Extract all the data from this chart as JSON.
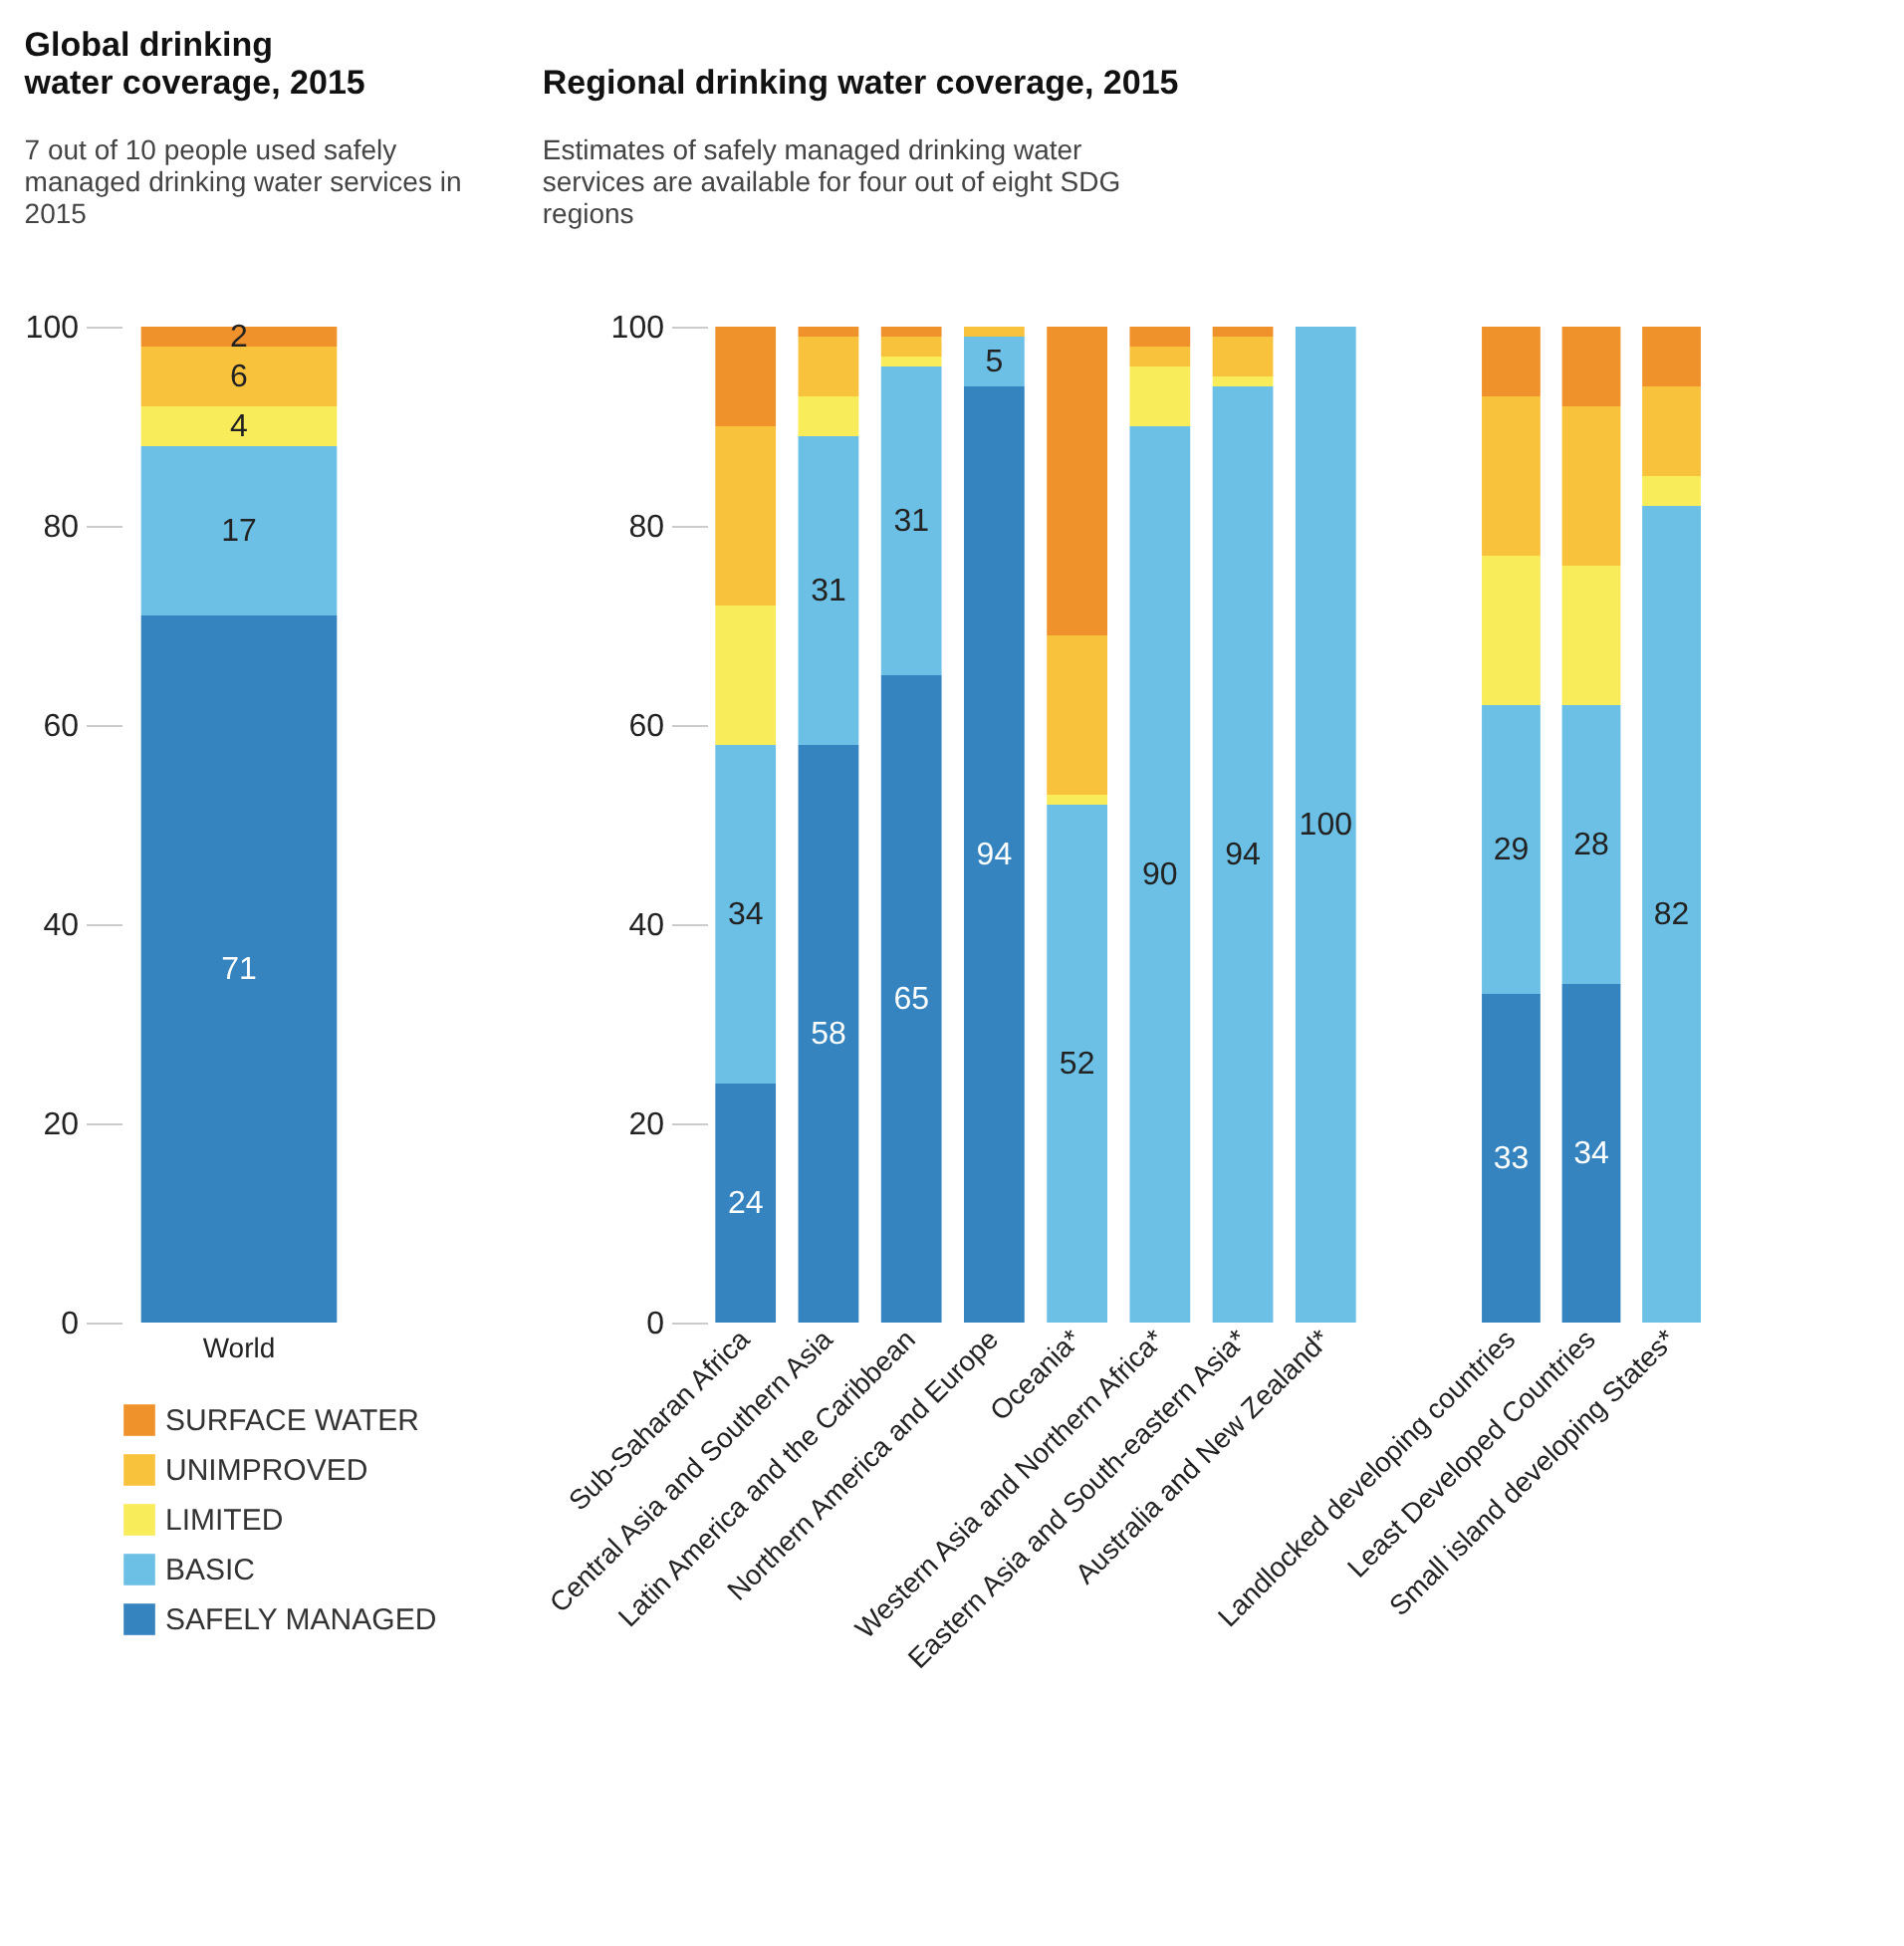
{
  "chart_data": [
    {
      "type": "bar",
      "stacked": true,
      "title": "Global drinking water coverage, 2015",
      "subtitle": "7 out of 10 people used safely managed drinking water services in 2015",
      "categories": [
        "World"
      ],
      "ylim": [
        0,
        100
      ],
      "yticks": [
        0,
        20,
        40,
        60,
        80,
        100
      ],
      "legend": "bottom",
      "series": [
        {
          "name": "SAFELY MANAGED",
          "color": "#3584bf",
          "values": [
            71
          ],
          "value_labels": [
            "71"
          ]
        },
        {
          "name": "BASIC",
          "color": "#6cc0e5",
          "values": [
            17
          ],
          "value_labels": [
            "17"
          ]
        },
        {
          "name": "LIMITED",
          "color": "#f8ec5a",
          "values": [
            4
          ],
          "value_labels": [
            "4"
          ]
        },
        {
          "name": "UNIMPROVED",
          "color": "#f8c23c",
          "values": [
            6
          ],
          "value_labels": [
            "6"
          ]
        },
        {
          "name": "SURFACE WATER",
          "color": "#f0922b",
          "values": [
            2
          ],
          "value_labels": [
            "2"
          ]
        }
      ]
    },
    {
      "type": "bar",
      "stacked": true,
      "title": "Regional drinking water coverage, 2015",
      "subtitle": "Estimates of safely managed drinking water services are available for four out of eight SDG regions",
      "categories": [
        "Sub-Saharan Africa",
        "Central Asia and Southern Asia",
        "Latin America and the Caribbean",
        "Northern America and Europe",
        "Oceania*",
        "Western Asia and Northern Africa*",
        "Eastern Asia and South-eastern Asia*",
        "Australia and New Zealand*"
      ],
      "ylim": [
        0,
        100
      ],
      "yticks": [
        0,
        20,
        40,
        60,
        80,
        100
      ],
      "series": [
        {
          "color": "#3584bf",
          "values": [
            24,
            58,
            65,
            94,
            null,
            null,
            null,
            null
          ],
          "value_labels": [
            "24",
            "58",
            "65",
            "94",
            null,
            null,
            null,
            null
          ]
        },
        {
          "color": "#6cc0e5",
          "values": [
            34,
            31,
            31,
            5,
            52,
            90,
            94,
            100
          ],
          "value_labels": [
            "34",
            "31",
            "31",
            "5",
            "52",
            "90",
            "94",
            "100"
          ]
        },
        {
          "color": "#f8ec5a",
          "values": [
            14,
            4,
            1,
            null,
            1,
            6,
            1,
            null
          ]
        },
        {
          "color": "#f8c23c",
          "values": [
            18,
            6,
            2,
            1,
            16,
            2,
            4,
            null
          ]
        },
        {
          "color": "#f0922b",
          "values": [
            10,
            1,
            1,
            null,
            31,
            2,
            1,
            null
          ]
        }
      ]
    },
    {
      "type": "bar",
      "stacked": true,
      "categories": [
        "Landlocked developing countries",
        "Least Developed Countries",
        "Small island developing States*"
      ],
      "ylim": [
        0,
        100
      ],
      "yticks": [
        0,
        20,
        40,
        60,
        80,
        100
      ],
      "tick_labels": "x",
      "series": [
        {
          "color": "#3584bf",
          "values": [
            33,
            34,
            null
          ],
          "value_labels": [
            "33",
            "34",
            null
          ]
        },
        {
          "color": "#6cc0e5",
          "values": [
            29,
            28,
            82
          ],
          "value_labels": [
            "29",
            "28",
            "82"
          ]
        },
        {
          "color": "#f8ec5a",
          "values": [
            15,
            14,
            3
          ]
        },
        {
          "color": "#f8c23c",
          "values": [
            16,
            16,
            9
          ]
        },
        {
          "color": "#f0922b",
          "values": [
            7,
            8,
            6
          ]
        }
      ]
    }
  ]
}
